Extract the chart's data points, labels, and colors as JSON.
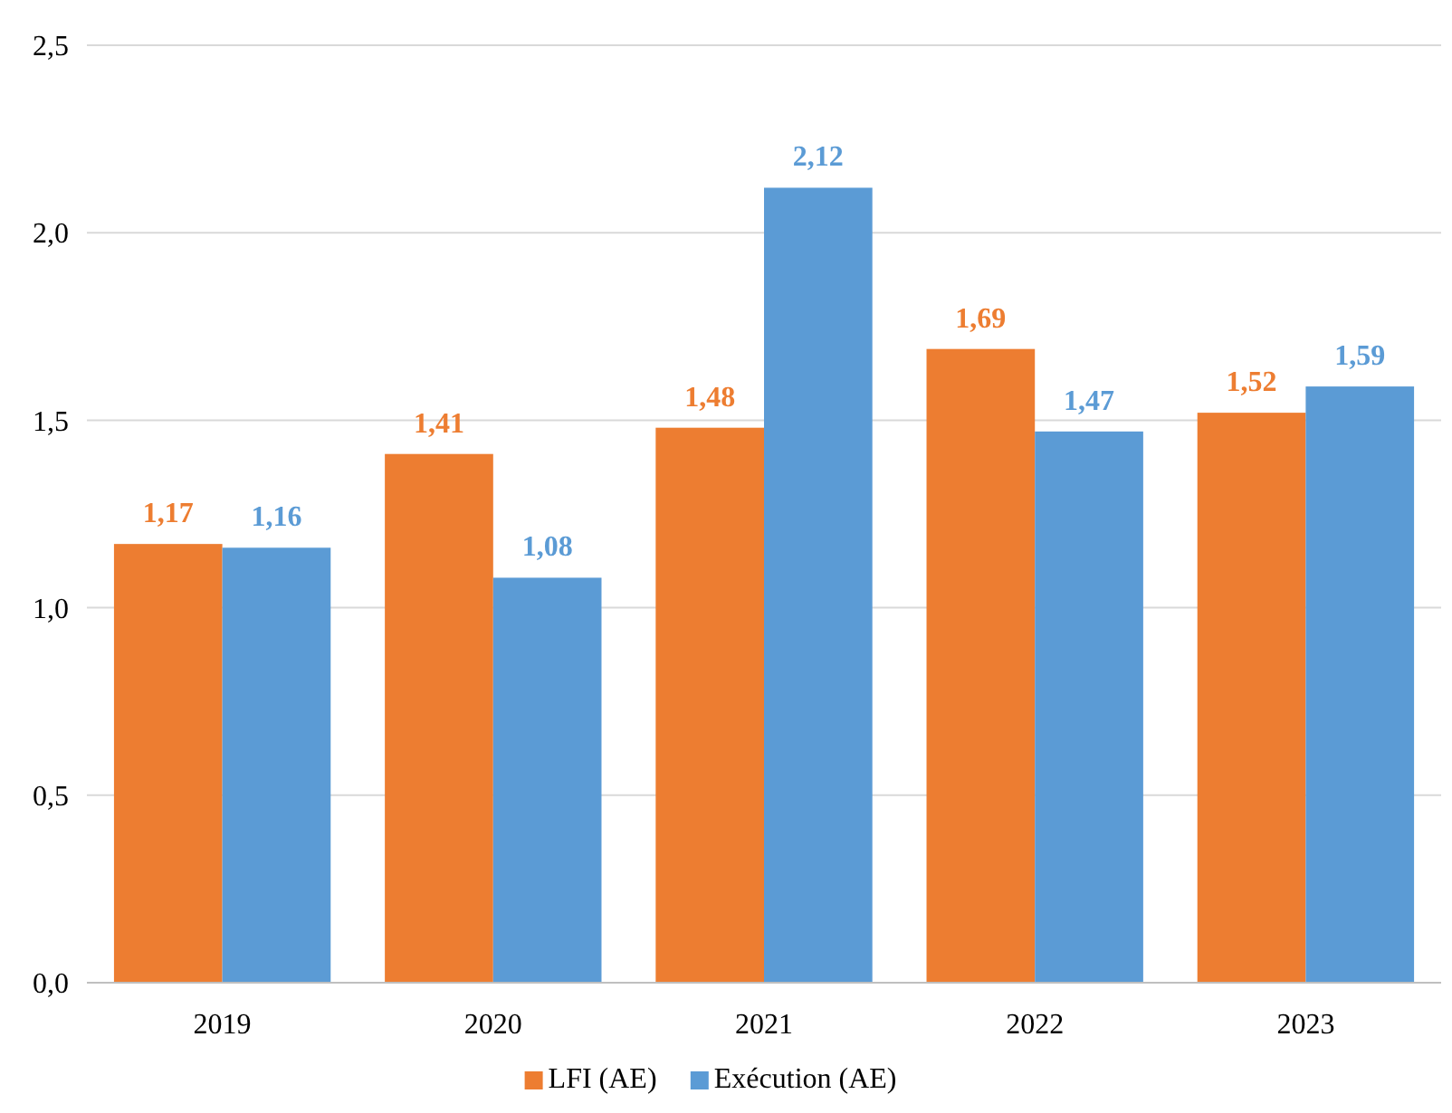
{
  "chart_data": {
    "type": "bar",
    "categories": [
      "2019",
      "2020",
      "2021",
      "2022",
      "2023"
    ],
    "series": [
      {
        "name": "LFI (AE)",
        "color": "#ed7d31",
        "values": [
          1.17,
          1.41,
          1.48,
          1.69,
          1.52
        ],
        "value_labels": [
          "1,17",
          "1,41",
          "1,48",
          "1,69",
          "1,52"
        ]
      },
      {
        "name": "Exécution (AE)",
        "color": "#5b9bd5",
        "values": [
          1.16,
          1.08,
          2.12,
          1.47,
          1.59
        ],
        "value_labels": [
          "1,16",
          "1,08",
          "2,12",
          "1,47",
          "1,59"
        ]
      }
    ],
    "ylim": [
      0,
      2.5
    ],
    "yticks": [
      {
        "value": 0,
        "label": "0,0"
      },
      {
        "value": 0.5,
        "label": "0,5"
      },
      {
        "value": 1,
        "label": "1,0"
      },
      {
        "value": 1.5,
        "label": "1,5"
      },
      {
        "value": 2,
        "label": "2,0"
      },
      {
        "value": 2.5,
        "label": "2,5"
      }
    ],
    "grid": "y",
    "legend": "bottom"
  }
}
